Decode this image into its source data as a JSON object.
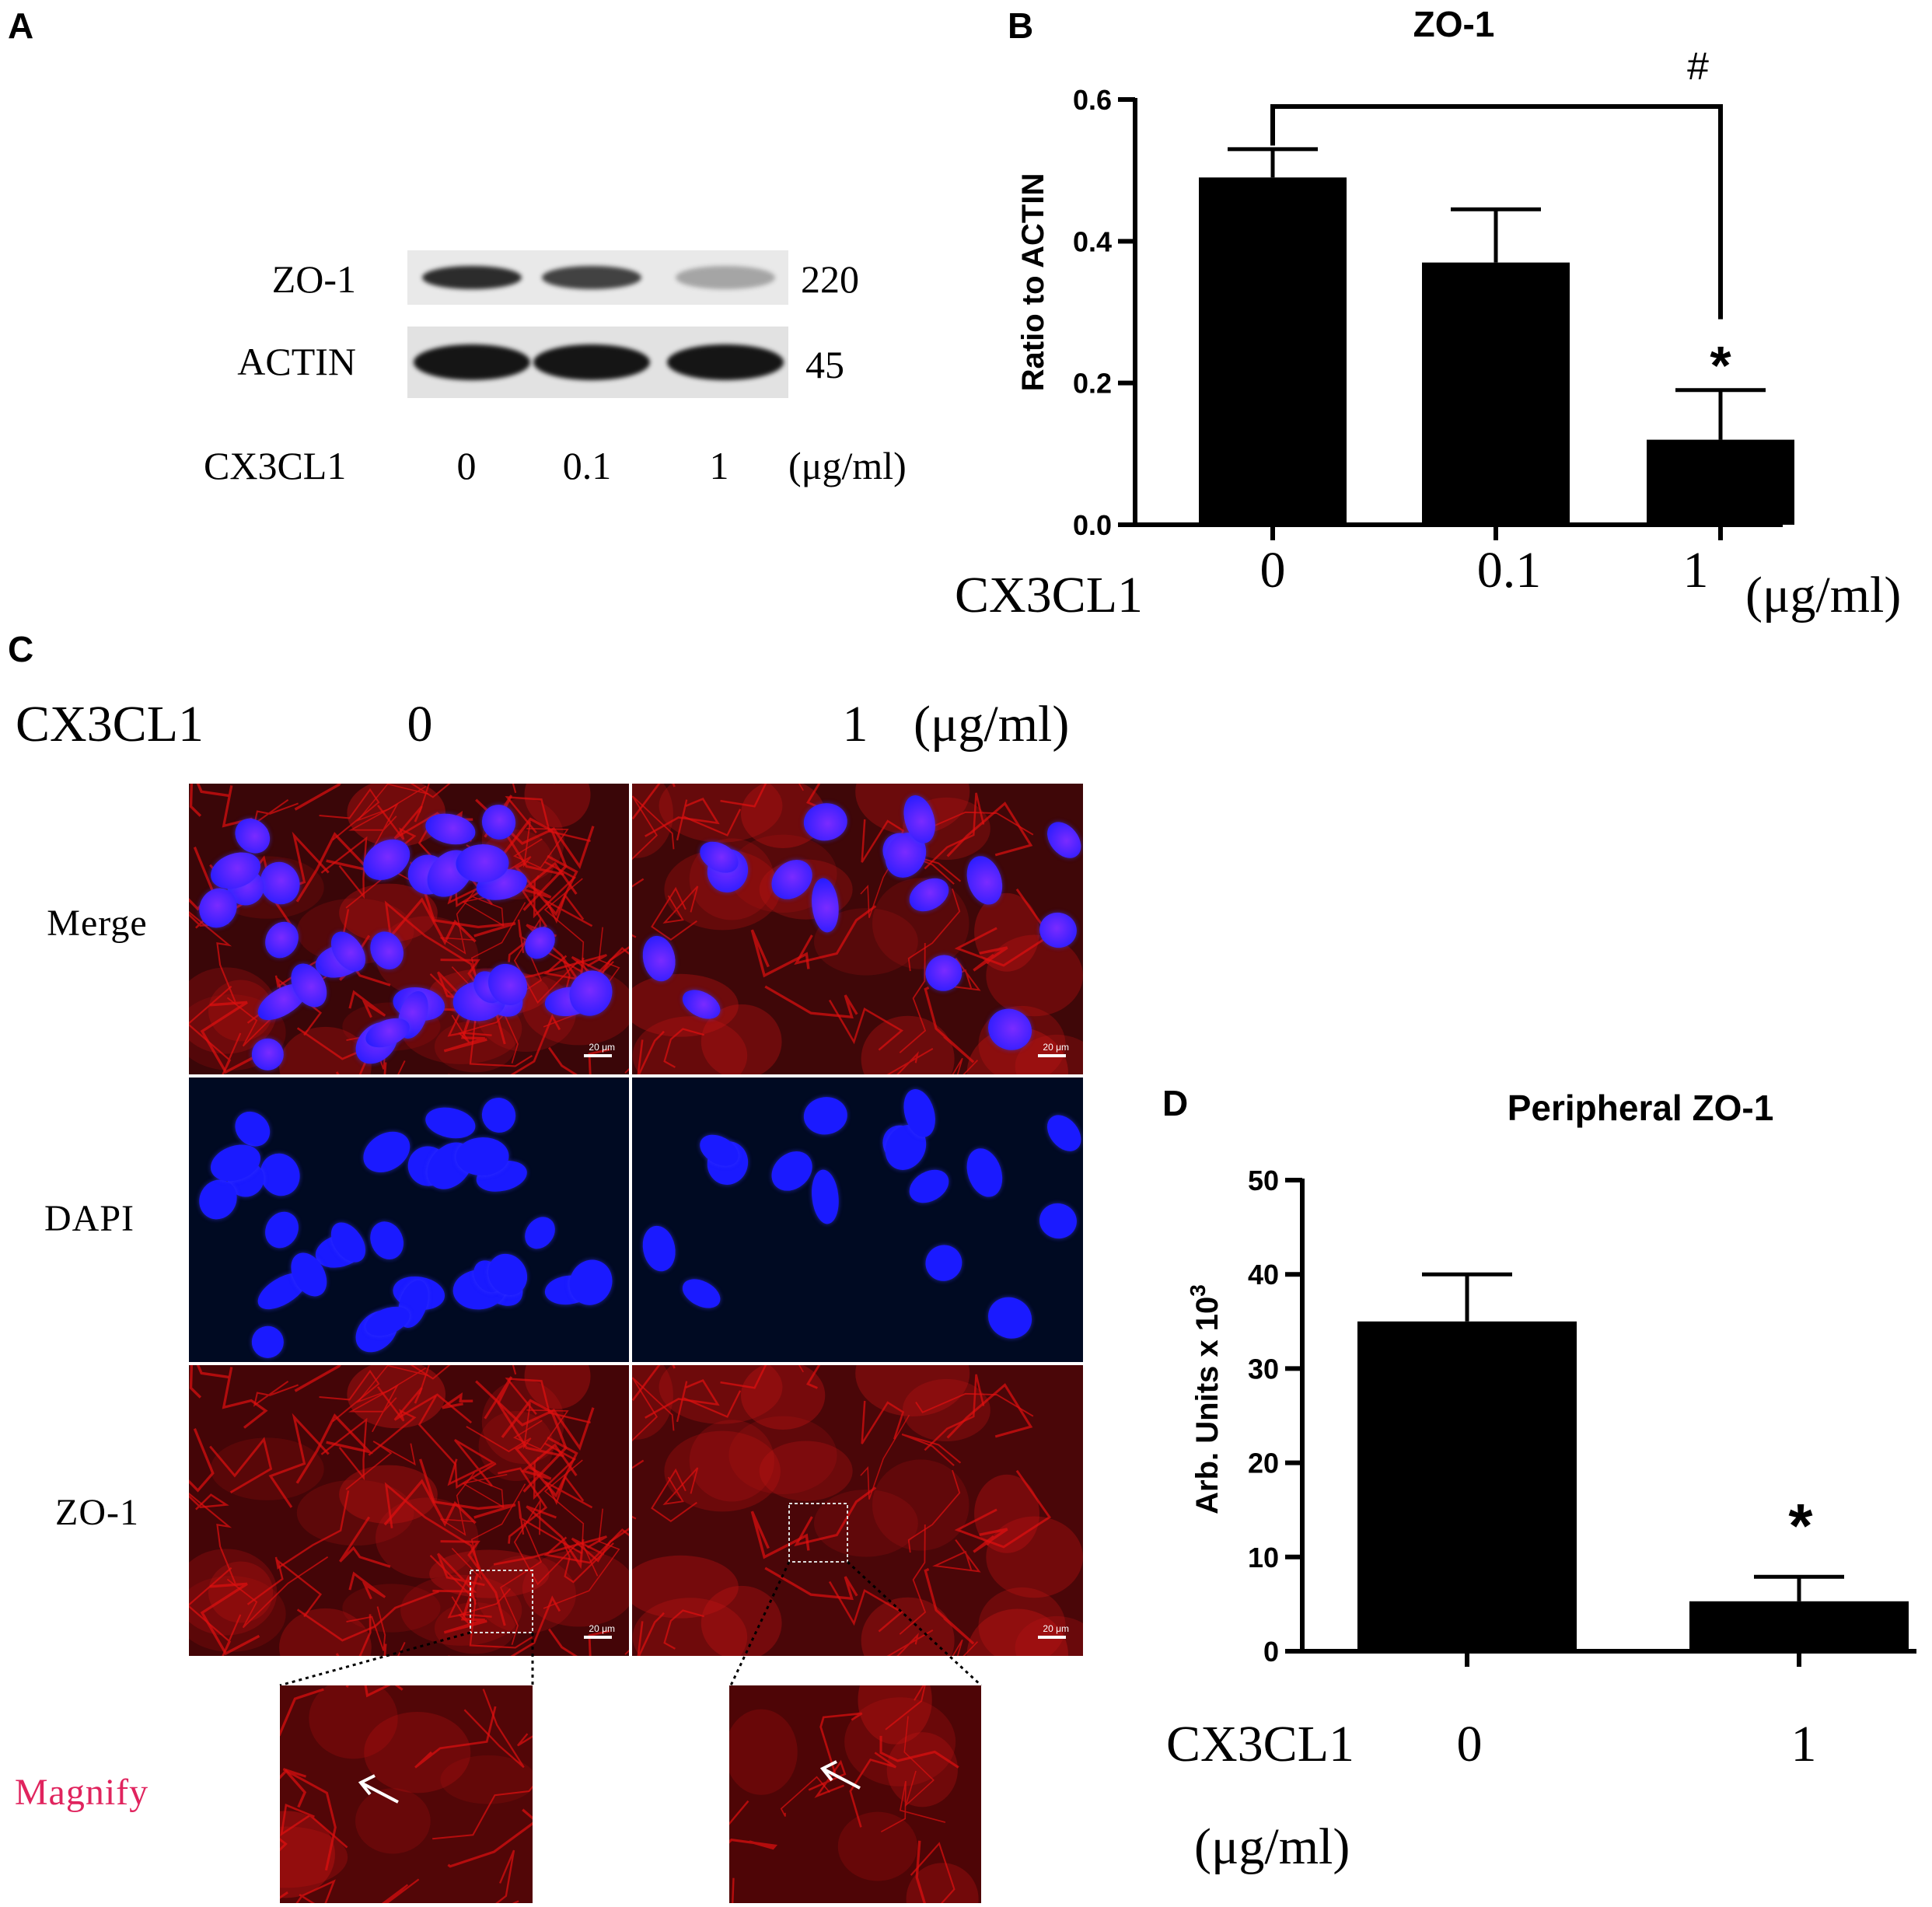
{
  "panels": {
    "A": {
      "letter": "A",
      "bands": [
        {
          "label": "ZO-1",
          "size": "220",
          "intensities": [
            0.85,
            0.75,
            0.3
          ]
        },
        {
          "label": "ACTIN",
          "size": "45",
          "intensities": [
            0.95,
            0.95,
            0.95
          ]
        }
      ],
      "treatment_label": "CX3CL1",
      "doses": [
        "0",
        "0.1",
        "1"
      ],
      "unit": "(μg/ml)"
    },
    "B": {
      "letter": "B",
      "sig_hash": "#",
      "sig_star": "*",
      "x_axis_label": "CX3CL1",
      "x_unit": "(μg/ml)"
    },
    "C": {
      "letter": "C",
      "treatment_label": "CX3CL1",
      "doses": [
        "0",
        "1"
      ],
      "unit": "(μg/ml)",
      "rows": [
        "Merge",
        "DAPI",
        "ZO-1"
      ],
      "magnify_label": "Magnify",
      "scale_bar": "20 μm",
      "colors": {
        "dapi": "#1a1aff",
        "zo1": "#e01010",
        "magnify": "#e0245e",
        "dapi_bg": "#000a22",
        "red_bg": "#4a0505"
      }
    },
    "D": {
      "letter": "D",
      "sig_star": "*",
      "x_axis_label": "CX3CL1",
      "x_unit": "(μg/ml)"
    }
  },
  "chart_data": [
    {
      "type": "bar",
      "panel": "B",
      "title": "ZO-1",
      "ylabel": "Ratio to ACTIN",
      "categories": [
        "0",
        "0.1",
        "1"
      ],
      "values": [
        0.49,
        0.37,
        0.12
      ],
      "errors": [
        0.04,
        0.075,
        0.07
      ],
      "ylim": [
        0,
        0.6
      ],
      "yticks": [
        "0.0",
        "0.2",
        "0.4",
        "0.6"
      ],
      "ytick_values": [
        0,
        0.2,
        0.4,
        0.6
      ]
    },
    {
      "type": "bar",
      "panel": "D",
      "title": "Peripheral ZO-1",
      "ylabel": "Arb. Units x 10",
      "ylabel_sup": "3",
      "categories": [
        "0",
        "1"
      ],
      "values": [
        35,
        5.3
      ],
      "errors": [
        5,
        2.6
      ],
      "ylim": [
        0,
        50
      ],
      "yticks": [
        "0",
        "10",
        "20",
        "30",
        "40",
        "50"
      ],
      "ytick_values": [
        0,
        10,
        20,
        30,
        40,
        50
      ]
    }
  ]
}
